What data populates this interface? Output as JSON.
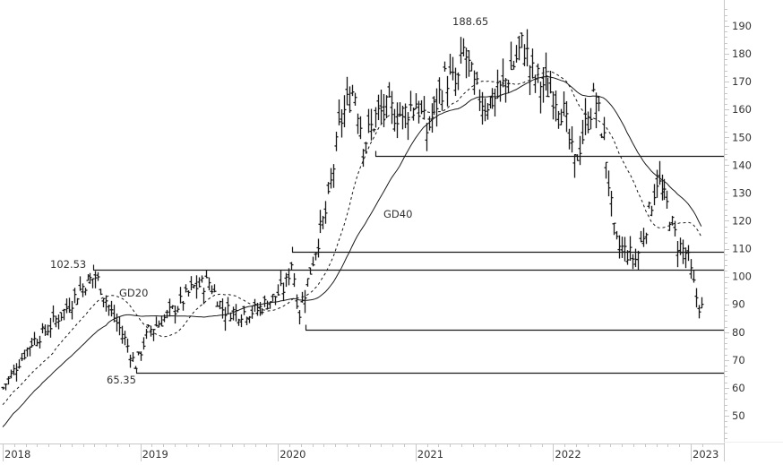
{
  "chart_data": {
    "type": "ohlc",
    "title": "",
    "xlabel": "",
    "ylabel": "",
    "x_ticks": [
      "2018",
      "2019",
      "2020",
      "2021",
      "2022",
      "2023"
    ],
    "y_ticks": [
      50,
      60,
      70,
      80,
      90,
      100,
      110,
      120,
      130,
      140,
      150,
      160,
      170,
      180,
      190
    ],
    "ylim": [
      40,
      195
    ],
    "xlim": [
      2018.0,
      2023.1
    ],
    "grid": false,
    "legend": "none",
    "annotations": [
      {
        "text": "188.65",
        "x": 2021.33,
        "y": 188.65,
        "kind": "high"
      },
      {
        "text": "102.53",
        "x": 2018.55,
        "y": 102.53,
        "kind": "high"
      },
      {
        "text": "65.35",
        "x": 2018.95,
        "y": 65.35,
        "kind": "low"
      },
      {
        "text": "GD20",
        "x": 2018.85,
        "y": 94,
        "kind": "series-label"
      },
      {
        "text": "GD40",
        "x": 2020.78,
        "y": 122,
        "kind": "series-label"
      }
    ],
    "horizontal_lines": [
      {
        "y": 143.3,
        "x_start": 2020.71
      },
      {
        "y": 108.9,
        "x_start": 2020.1
      },
      {
        "y": 102.53,
        "x_start": 2018.66
      },
      {
        "y": 81.0,
        "x_start": 2020.2
      },
      {
        "y": 65.35,
        "x_start": 2018.97
      }
    ],
    "price_path": {
      "x": [
        2018.0,
        2018.1,
        2018.2,
        2018.3,
        2018.45,
        2018.6,
        2018.68,
        2018.78,
        2018.88,
        2018.96,
        2019.05,
        2019.15,
        2019.28,
        2019.38,
        2019.5,
        2019.6,
        2019.72,
        2019.85,
        2019.98,
        2020.05,
        2020.1,
        2020.15,
        2020.2,
        2020.28,
        2020.36,
        2020.45,
        2020.5,
        2020.55,
        2020.62,
        2020.72,
        2020.8,
        2020.9,
        2021.0,
        2021.08,
        2021.15,
        2021.22,
        2021.3,
        2021.35,
        2021.42,
        2021.5,
        2021.6,
        2021.7,
        2021.78,
        2021.85,
        2021.95,
        2022.02,
        2022.08,
        2022.15,
        2022.22,
        2022.3,
        2022.38,
        2022.45,
        2022.55,
        2022.6,
        2022.67,
        2022.75,
        2022.83,
        2022.9,
        2022.97,
        2023.05,
        2023.09
      ],
      "close": [
        60,
        68,
        76,
        80,
        88,
        98,
        100,
        88,
        78,
        68,
        80,
        84,
        90,
        96,
        98,
        88,
        87,
        88,
        93,
        96,
        106,
        86,
        96,
        112,
        125,
        155,
        162,
        168,
        148,
        158,
        160,
        158,
        163,
        152,
        162,
        172,
        168,
        182,
        168,
        162,
        165,
        175,
        184,
        172,
        168,
        165,
        158,
        140,
        152,
        165,
        145,
        112,
        108,
        106,
        118,
        135,
        125,
        112,
        108,
        90,
        88
      ]
    },
    "series": [
      {
        "name": "Price (OHLC bars)"
      },
      {
        "name": "GD20",
        "style": "dashed"
      },
      {
        "name": "GD40",
        "style": "solid"
      }
    ]
  },
  "axis": {
    "x_tick_labels": [
      "2018",
      "2019",
      "2020",
      "2021",
      "2022",
      "2023"
    ],
    "y_tick_labels": [
      "190",
      "180",
      "170",
      "160",
      "150",
      "140",
      "130",
      "120",
      "110",
      "100",
      "90",
      "80",
      "70",
      "60",
      "50"
    ]
  },
  "labels": {
    "peak": "188.65",
    "high_2018": "102.53",
    "low_2018": "65.35",
    "gd20": "GD20",
    "gd40": "GD40"
  },
  "colors": {
    "bars": "#1a1a1a",
    "axis": "#c8c8c8",
    "text": "#333333",
    "lines": "#1a1a1a"
  }
}
